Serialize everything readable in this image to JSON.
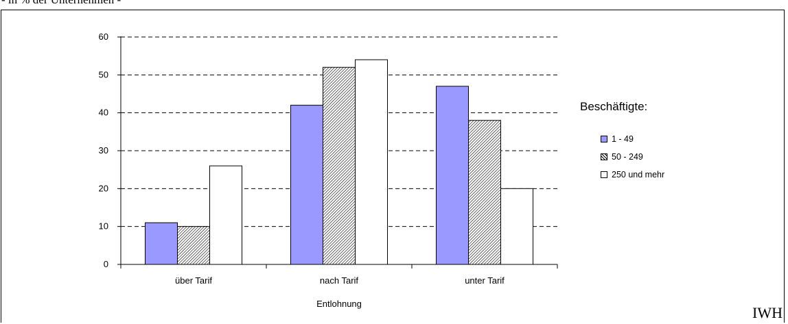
{
  "header": {
    "caption": "- in % der Unternehmen -"
  },
  "footer": {
    "source": "IWH"
  },
  "chart_data": {
    "type": "bar",
    "categories": [
      "über Tarif",
      "nach Tarif",
      "unter Tarif"
    ],
    "series": [
      {
        "name": "1 - 49",
        "values": [
          11,
          42,
          47
        ],
        "color": "#9999ff",
        "pattern": "solid"
      },
      {
        "name": "50 - 249",
        "values": [
          10,
          52,
          38
        ],
        "color": "#ffffff",
        "pattern": "diagonal-hatch"
      },
      {
        "name": "250 und mehr",
        "values": [
          26,
          54,
          20
        ],
        "color": "#ffffff",
        "pattern": "solid"
      }
    ],
    "xlabel": "Entlohnung",
    "ylabel": "",
    "ylim": [
      0,
      60
    ],
    "yticks": [
      "0",
      "10",
      "20",
      "30",
      "40",
      "50",
      "60"
    ],
    "grid": "dashed horizontal",
    "legend": {
      "title": "Beschäftigte:",
      "position": "right"
    }
  }
}
